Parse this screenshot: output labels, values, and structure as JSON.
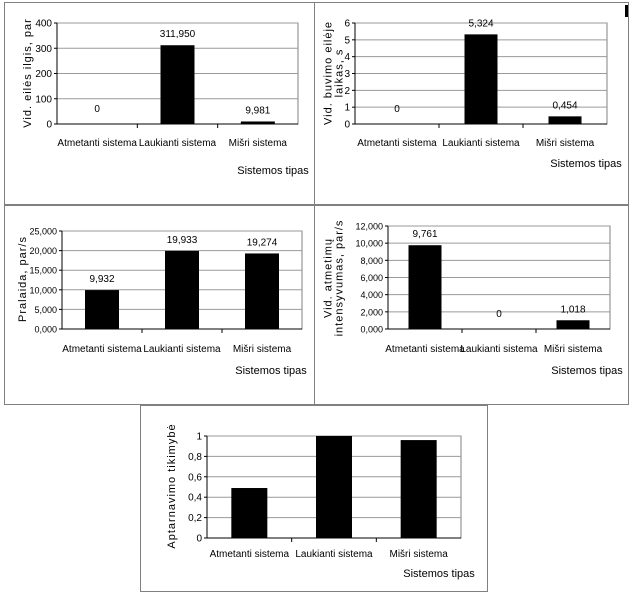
{
  "chart_data": [
    {
      "type": "bar",
      "categories": [
        "Atmetanti sistema",
        "Laukianti sistema",
        "Mišri sistema"
      ],
      "values": [
        0,
        311.95,
        9.981
      ],
      "data_labels": [
        "0",
        "311,950",
        "9,981"
      ],
      "xlabel": "Sistemos tipas",
      "ylabel": "Vid. eilės ilgis, par",
      "ylim": [
        0,
        400
      ],
      "yticks": [
        0,
        100,
        200,
        300,
        400
      ],
      "ytick_labels": [
        "0",
        "100",
        "200",
        "300",
        "400"
      ],
      "grid": true,
      "bar_color": "#000000"
    },
    {
      "type": "bar",
      "categories": [
        "Atmetanti sistema",
        "Laukianti sistema",
        "Mišri sistema"
      ],
      "values": [
        0,
        5.324,
        0.454
      ],
      "data_labels": [
        "0",
        "5,324",
        "0,454"
      ],
      "xlabel": "Sistemos tipas",
      "ylabel": [
        "Vid. buvimo eilėje",
        "laikas, s"
      ],
      "ylim": [
        0,
        6
      ],
      "yticks": [
        0,
        1,
        2,
        3,
        4,
        5,
        6
      ],
      "ytick_labels": [
        "0",
        "1",
        "2",
        "3",
        "4",
        "5",
        "6"
      ],
      "grid": true,
      "bar_color": "#000000"
    },
    {
      "type": "bar",
      "categories": [
        "Atmetanti sistema",
        "Laukianti sistema",
        "Mišri sistema"
      ],
      "values": [
        9.932,
        19.933,
        19.274
      ],
      "data_labels": [
        "9,932",
        "19,933",
        "19,274"
      ],
      "xlabel": "Sistemos tipas",
      "ylabel": "Pralaida, par/s",
      "ylim": [
        0,
        25
      ],
      "yticks": [
        0,
        5,
        10,
        15,
        20,
        25
      ],
      "ytick_labels": [
        "0,000",
        "5,000",
        "10,000",
        "15,000",
        "20,000",
        "25,000"
      ],
      "grid": true,
      "bar_color": "#000000"
    },
    {
      "type": "bar",
      "categories": [
        "Atmetanti sistema",
        "Laukianti sistema",
        "Mišri sistema"
      ],
      "values": [
        9.761,
        0,
        1.018
      ],
      "data_labels": [
        "9,761",
        "0",
        "1,018"
      ],
      "xlabel": "Sistemos tipas",
      "ylabel": [
        "Vid. atmetimų",
        "intensyvumas, par/s"
      ],
      "ylim": [
        0,
        12
      ],
      "yticks": [
        0,
        2,
        4,
        6,
        8,
        10,
        12
      ],
      "ytick_labels": [
        "0,000",
        "2,000",
        "4,000",
        "6,000",
        "8,000",
        "10,000",
        "12,000"
      ],
      "grid": true,
      "bar_color": "#000000"
    },
    {
      "type": "bar",
      "categories": [
        "Atmetanti sistema",
        "Laukianti sistema",
        "Mišri sistema"
      ],
      "values": [
        0.49,
        1.0,
        0.96
      ],
      "data_labels": [],
      "xlabel": "Sistemos tipas",
      "ylabel": "Aptarnavimo tikimybė",
      "ylim": [
        0,
        1
      ],
      "yticks": [
        0,
        0.2,
        0.4,
        0.6,
        0.8,
        1
      ],
      "ytick_labels": [
        "0",
        "0,2",
        "0,4",
        "0,6",
        "0,8",
        "1"
      ],
      "grid": true,
      "bar_color": "#000000"
    }
  ]
}
